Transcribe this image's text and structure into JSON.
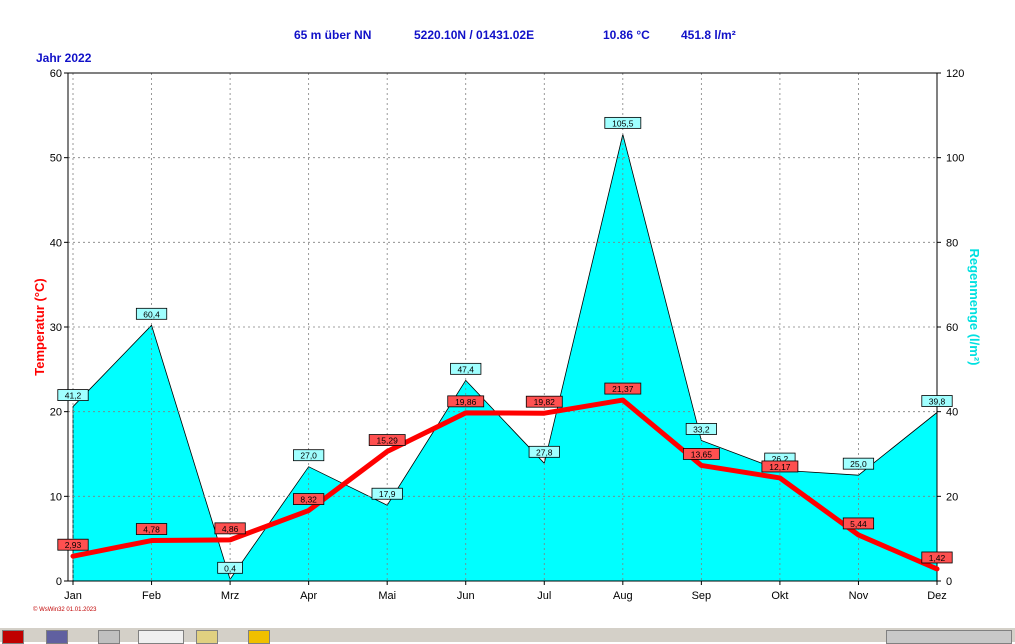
{
  "header": {
    "altitude": "65 m über NN",
    "coords": "5220.10N / 01431.02E",
    "avg_temp": "10.86 °C",
    "rain_total": "451.8 l/m²",
    "year_label": "Jahr  2022"
  },
  "footnote": "© WsWin32  01.01.2023",
  "colors": {
    "temperature": "#ff0000",
    "rain_fill": "#00ffff",
    "header_text": "#1010c8",
    "axis_left_label": "#ff0000",
    "axis_right_label": "#00e0e0"
  },
  "chart_data": {
    "type": "line",
    "categories": [
      "Jan",
      "Feb",
      "Mrz",
      "Apr",
      "Mai",
      "Jun",
      "Jul",
      "Aug",
      "Sep",
      "Okt",
      "Nov",
      "Dez"
    ],
    "series": [
      {
        "name": "Temperatur",
        "axis": "left",
        "type": "line",
        "values": [
          2.93,
          4.78,
          4.86,
          8.32,
          15.29,
          19.86,
          19.82,
          21.37,
          13.65,
          12.17,
          5.44,
          1.42
        ],
        "labels": [
          "2,93",
          "4,78",
          "4,86",
          "8,32",
          "15,29",
          "19,86",
          "19,82",
          "21,37",
          "13,65",
          "12,17",
          "5,44",
          "1,42"
        ]
      },
      {
        "name": "Regenmenge",
        "axis": "right",
        "type": "area",
        "values": [
          41.2,
          60.4,
          0.4,
          27.0,
          17.9,
          47.4,
          27.8,
          105.5,
          33.2,
          26.2,
          25.0,
          39.8
        ],
        "labels": [
          "41,2",
          "60,4",
          "0,4",
          "27,0",
          "17,9",
          "47,4",
          "27,8",
          "105,5",
          "33,2",
          "26,2",
          "25,0",
          "39,8"
        ]
      }
    ],
    "ylabel": "Temperatur  (°C)",
    "y2label": "Regenmenge  (l/m²)",
    "ylim": [
      0,
      60
    ],
    "y2lim": [
      0,
      120
    ],
    "yticks": [
      0,
      10,
      20,
      30,
      40,
      50,
      60
    ],
    "y2ticks": [
      0,
      20,
      40,
      60,
      80,
      100,
      120
    ],
    "grid": true
  }
}
